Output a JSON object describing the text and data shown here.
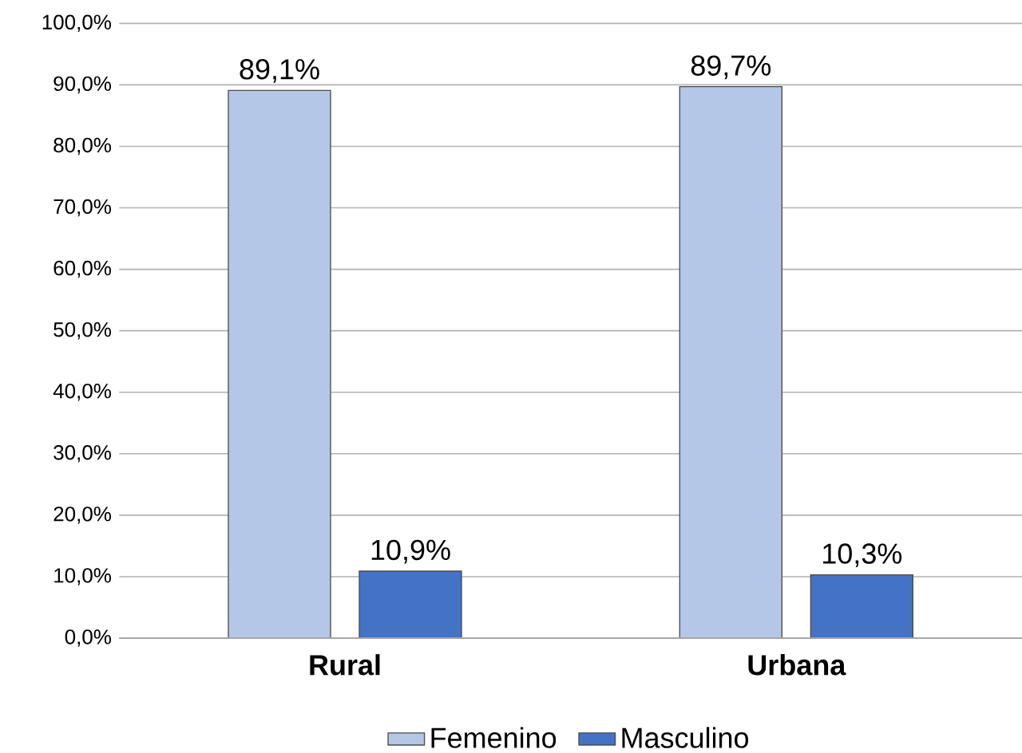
{
  "chart_data": {
    "type": "bar",
    "categories": [
      "Rural",
      "Urbana"
    ],
    "series": [
      {
        "name": "Femenino",
        "color": "#b4c7e7",
        "values": [
          89.1,
          89.7
        ],
        "value_labels": [
          "89,1%",
          "89,7%"
        ]
      },
      {
        "name": "Masculino",
        "color": "#4472c4",
        "values": [
          10.9,
          10.3
        ],
        "value_labels": [
          "10,9%",
          "10,3%"
        ]
      }
    ],
    "ylim": [
      0,
      100
    ],
    "yticks": [
      {
        "value": 0,
        "label": "0,0%"
      },
      {
        "value": 10,
        "label": "10,0%"
      },
      {
        "value": 20,
        "label": "20,0%"
      },
      {
        "value": 30,
        "label": "30,0%"
      },
      {
        "value": 40,
        "label": "40,0%"
      },
      {
        "value": 50,
        "label": "50,0%"
      },
      {
        "value": 60,
        "label": "60,0%"
      },
      {
        "value": 70,
        "label": "70,0%"
      },
      {
        "value": 80,
        "label": "80,0%"
      },
      {
        "value": 90,
        "label": "90,0%"
      },
      {
        "value": 100,
        "label": "100,0%"
      }
    ],
    "grid": "y",
    "legend": "bottom"
  }
}
